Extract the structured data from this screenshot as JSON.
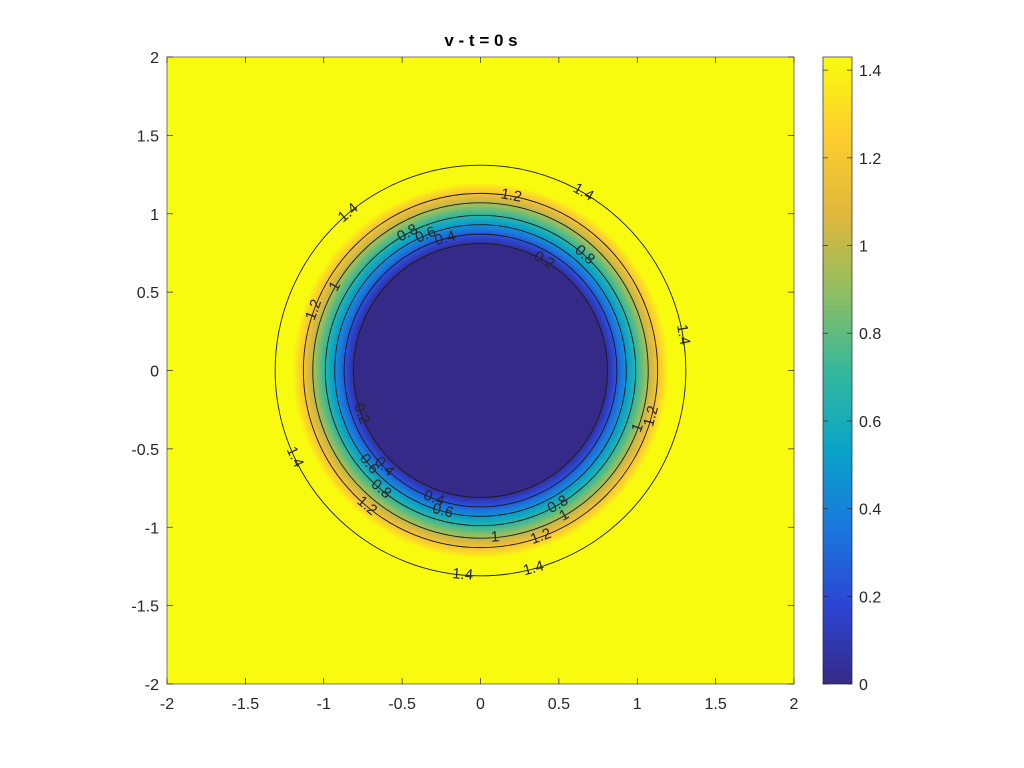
{
  "chart_data": {
    "type": "heatmap",
    "title": "v - t = 0 s",
    "xlim": [
      -2,
      2
    ],
    "ylim": [
      -2,
      2
    ],
    "x_ticks": [
      "-2",
      "-1.5",
      "-1",
      "-0.5",
      "0",
      "0.5",
      "1",
      "1.5",
      "2"
    ],
    "y_ticks": [
      "2",
      "1.5",
      "1",
      "0.5",
      "0",
      "-0.5",
      "-1",
      "-1.5",
      "-2"
    ],
    "colorbar": {
      "range": [
        0,
        1.43
      ],
      "ticks": [
        "1.4",
        "1.2",
        "1",
        "0.8",
        "0.6",
        "0.4",
        "0.2",
        "0"
      ],
      "colormap": "parula",
      "colors": [
        "#352a87",
        "#2c45d4",
        "#1a78dd",
        "#0aa4c8",
        "#35b89b",
        "#90be61",
        "#e0b83c",
        "#fcce2e",
        "#f9fb0e"
      ]
    },
    "field": {
      "center": [
        0,
        0
      ],
      "inner_radius": 0.8,
      "outer_radius": 1.2,
      "inner_value": 0.03,
      "outer_value": 1.43
    },
    "contours": [
      {
        "level": 0.2,
        "radius": 0.81,
        "labels": [
          "0.2",
          "0.2"
        ]
      },
      {
        "level": 0.4,
        "radius": 0.87,
        "labels": [
          "0.4",
          "0.4",
          "0.4"
        ]
      },
      {
        "level": 0.6,
        "radius": 0.93,
        "labels": [
          "0.6",
          "0.6",
          "0.6"
        ]
      },
      {
        "level": 0.8,
        "radius": 0.99,
        "labels": [
          "0.8",
          "0.8",
          "0.8",
          "0.8"
        ]
      },
      {
        "level": 1.0,
        "radius": 1.07,
        "labels": [
          "1",
          "1",
          "1",
          "1"
        ]
      },
      {
        "level": 1.2,
        "radius": 1.13,
        "labels": [
          "1.2",
          "1.2",
          "1.2",
          "1.2",
          "1.2"
        ]
      },
      {
        "level": 1.4,
        "radius": 1.31,
        "labels": [
          "1.4",
          "1.4",
          "1.4",
          "1.4",
          "1.4",
          "1.4"
        ]
      }
    ]
  }
}
